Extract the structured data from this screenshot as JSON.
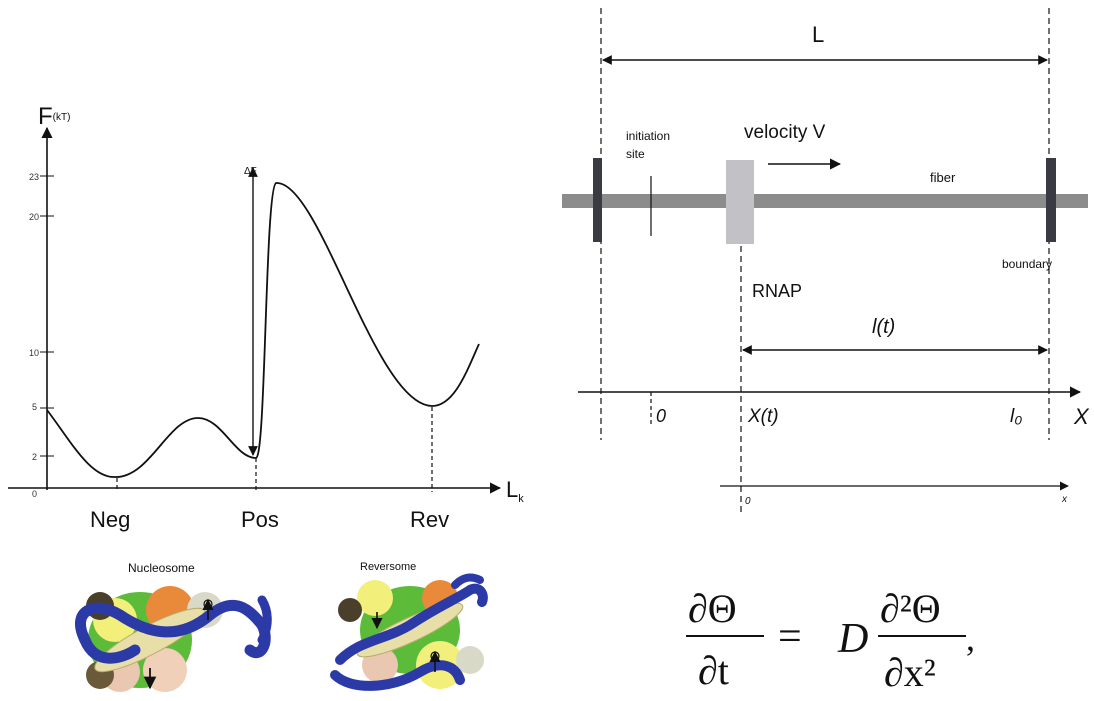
{
  "energy_plot": {
    "y_axis_label_main": "F",
    "y_axis_label_sub": "(kT)",
    "x_axis_label_main": "L",
    "x_axis_label_sub": "k",
    "y_ticks": [
      "0",
      "2",
      "5",
      "10",
      "20",
      "23"
    ],
    "x_ticks": [
      "Neg",
      "Pos",
      "Rev"
    ],
    "barrier_label": "ΔF",
    "states": [
      {
        "name": "Neg",
        "energy_kT": 0.5
      },
      {
        "name": "Pos",
        "energy_kT": 1.5
      },
      {
        "name": "Rev",
        "energy_kT": 5
      }
    ]
  },
  "structures": {
    "nucleosome_label": "Nucleosome",
    "reversome_label": "Reversome",
    "colors": {
      "dna": "#2b3aa6",
      "histone_core": "#e8dfa8",
      "green": "#5dbb3a",
      "orange": "#e88a3a",
      "yellow": "#f2ef7a",
      "dark": "#4a3f2a"
    }
  },
  "fiber_diagram": {
    "length_label": "L",
    "initiation_label_line1": "initiation",
    "initiation_label_line2": "site",
    "velocity_label": "velocity V",
    "fiber_label": "fiber",
    "boundary_label": "boundary",
    "rnap_label": "RNAP",
    "remaining_label": "l(t)",
    "axis_label": "X",
    "axis_ticks": [
      "0",
      "X(t)",
      "l₀"
    ],
    "moving_axis_origin": "0",
    "moving_axis_label": "x",
    "colors": {
      "fiber": "#8c8c8c",
      "rnap": "#c2c2c6",
      "boundary": "#3a3a44"
    }
  },
  "equation": {
    "lhs_numerator": "∂Θ",
    "lhs_denominator": "∂t",
    "equals": "=",
    "coefficient": "D",
    "rhs_numerator": "∂²Θ",
    "rhs_denominator": "∂x²",
    "trailing": ","
  }
}
